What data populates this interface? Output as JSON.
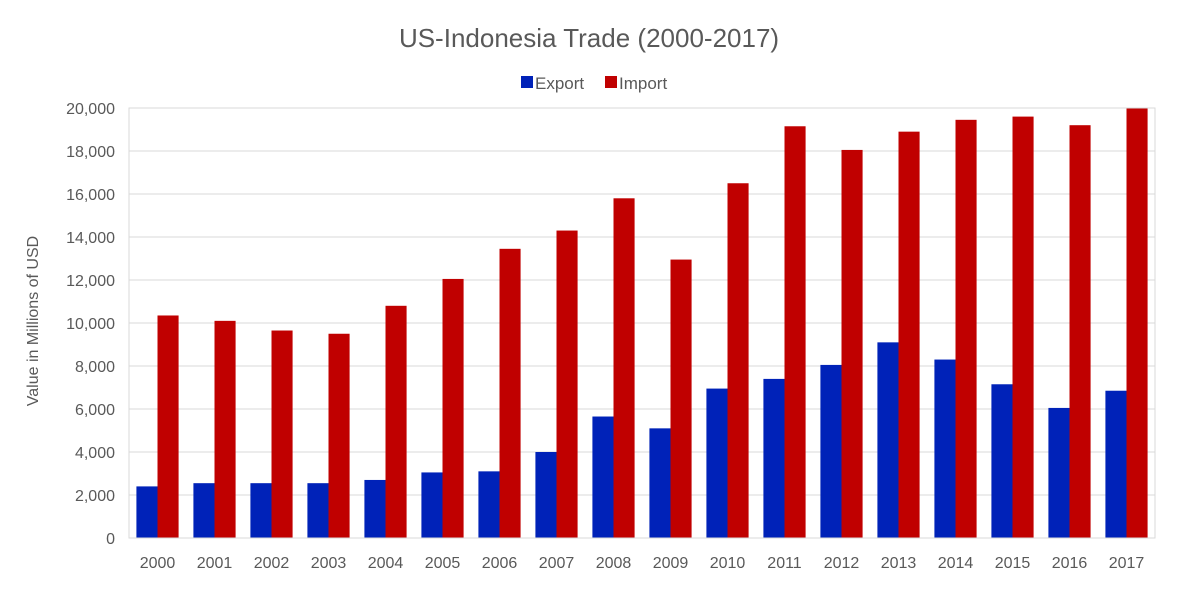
{
  "chart_data": {
    "type": "bar",
    "title": "US-Indonesia Trade (2000-2017)",
    "xlabel": "",
    "ylabel": "Value in Millions of USD",
    "categories": [
      "2000",
      "2001",
      "2002",
      "2003",
      "2004",
      "2005",
      "2006",
      "2007",
      "2008",
      "2009",
      "2010",
      "2011",
      "2012",
      "2013",
      "2014",
      "2015",
      "2016",
      "2017"
    ],
    "series": [
      {
        "name": "Export",
        "color": "#0022b8",
        "values": [
          2400,
          2550,
          2550,
          2550,
          2700,
          3050,
          3100,
          4000,
          5650,
          5100,
          6950,
          7400,
          8050,
          9100,
          8300,
          7150,
          6050,
          6850
        ]
      },
      {
        "name": "Import",
        "color": "#c00000",
        "values": [
          10350,
          10100,
          9650,
          9500,
          10800,
          12050,
          13450,
          14300,
          15800,
          12950,
          16500,
          19150,
          18050,
          18900,
          19450,
          19600,
          19200,
          20000
        ]
      }
    ],
    "ylim": [
      0,
      20000
    ],
    "yticks": [
      0,
      2000,
      4000,
      6000,
      8000,
      10000,
      12000,
      14000,
      16000,
      18000,
      20000
    ],
    "ytick_labels": [
      "0",
      "2,000",
      "4,000",
      "6,000",
      "8,000",
      "10,000",
      "12,000",
      "14,000",
      "16,000",
      "18,000",
      "20,000"
    ],
    "grid": true,
    "legend_position": "top-center"
  }
}
